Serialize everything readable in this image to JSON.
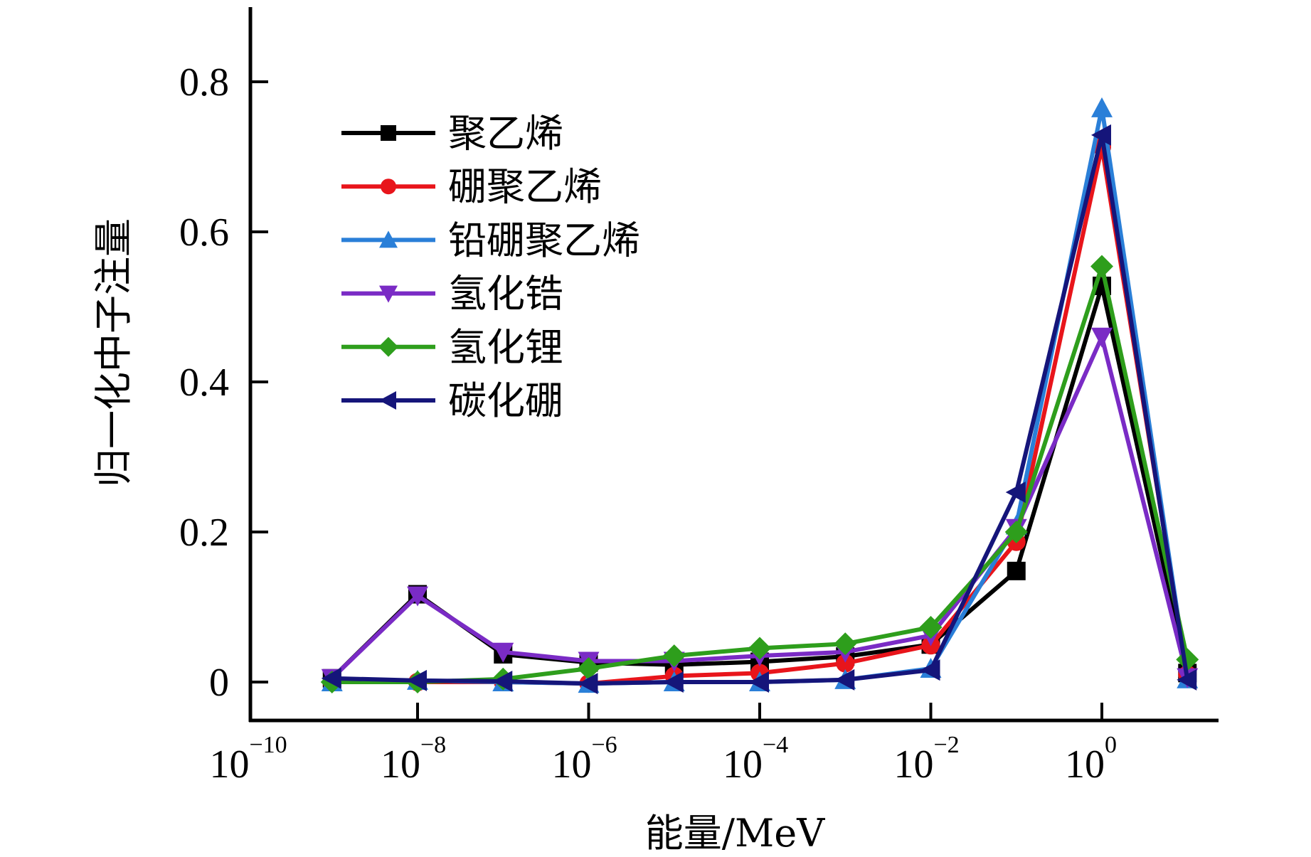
{
  "chart_data": {
    "type": "line",
    "title": "",
    "xlabel": "能量/MeV",
    "ylabel": "归一化中子注量",
    "xscale": "log",
    "xlim_exp": [
      -10,
      1.6
    ],
    "ylim": [
      -0.05,
      0.9
    ],
    "grid": false,
    "legend_position": "top-left",
    "x_ticks": [
      {
        "exp": -10,
        "base": "10",
        "sup": "−10"
      },
      {
        "exp": -8,
        "base": "10",
        "sup": "−8"
      },
      {
        "exp": -6,
        "base": "10",
        "sup": "−6"
      },
      {
        "exp": -4,
        "base": "10",
        "sup": "−4"
      },
      {
        "exp": -2,
        "base": "10",
        "sup": "−2"
      },
      {
        "exp": 0,
        "base": "10",
        "sup": "0"
      }
    ],
    "y_ticks": [
      {
        "value": 0,
        "label": "0"
      },
      {
        "value": 0.2,
        "label": "0.2"
      },
      {
        "value": 0.4,
        "label": "0.4"
      },
      {
        "value": 0.6,
        "label": "0.6"
      },
      {
        "value": 0.8,
        "label": "0.8"
      }
    ],
    "x_exp": [
      -9,
      -8,
      -7,
      -6,
      -5,
      -4,
      -3,
      -2,
      -1,
      0,
      1
    ],
    "series": [
      {
        "name": "聚乙烯",
        "color": "#000000",
        "marker": "square",
        "values": [
          0.005,
          0.117,
          0.037,
          0.026,
          0.023,
          0.027,
          0.034,
          0.05,
          0.148,
          0.528,
          0.012
        ]
      },
      {
        "name": "硼聚乙烯",
        "color": "#e8151b",
        "marker": "circle",
        "values": [
          0.0,
          0.0,
          0.0,
          -0.002,
          0.008,
          0.012,
          0.025,
          0.049,
          0.187,
          0.713,
          0.01
        ]
      },
      {
        "name": "铅硼聚乙烯",
        "color": "#2a7fd8",
        "marker": "triangle-up",
        "values": [
          0.0,
          0.002,
          0.0,
          -0.002,
          0.0,
          0.0,
          0.003,
          0.018,
          0.209,
          0.765,
          0.004
        ]
      },
      {
        "name": "氢化锆",
        "color": "#7a2bc5",
        "marker": "triangle-down",
        "values": [
          0.005,
          0.115,
          0.04,
          0.028,
          0.028,
          0.035,
          0.04,
          0.062,
          0.205,
          0.46,
          0.006
        ]
      },
      {
        "name": "氢化锂",
        "color": "#2e9e1c",
        "marker": "diamond",
        "values": [
          0.0,
          0.0,
          0.004,
          0.018,
          0.035,
          0.045,
          0.051,
          0.073,
          0.2,
          0.554,
          0.03
        ]
      },
      {
        "name": "碳化硼",
        "color": "#15157a",
        "marker": "triangle-left",
        "values": [
          0.005,
          0.002,
          0.001,
          -0.002,
          0.0,
          0.0,
          0.003,
          0.016,
          0.253,
          0.729,
          0.003
        ]
      }
    ]
  }
}
